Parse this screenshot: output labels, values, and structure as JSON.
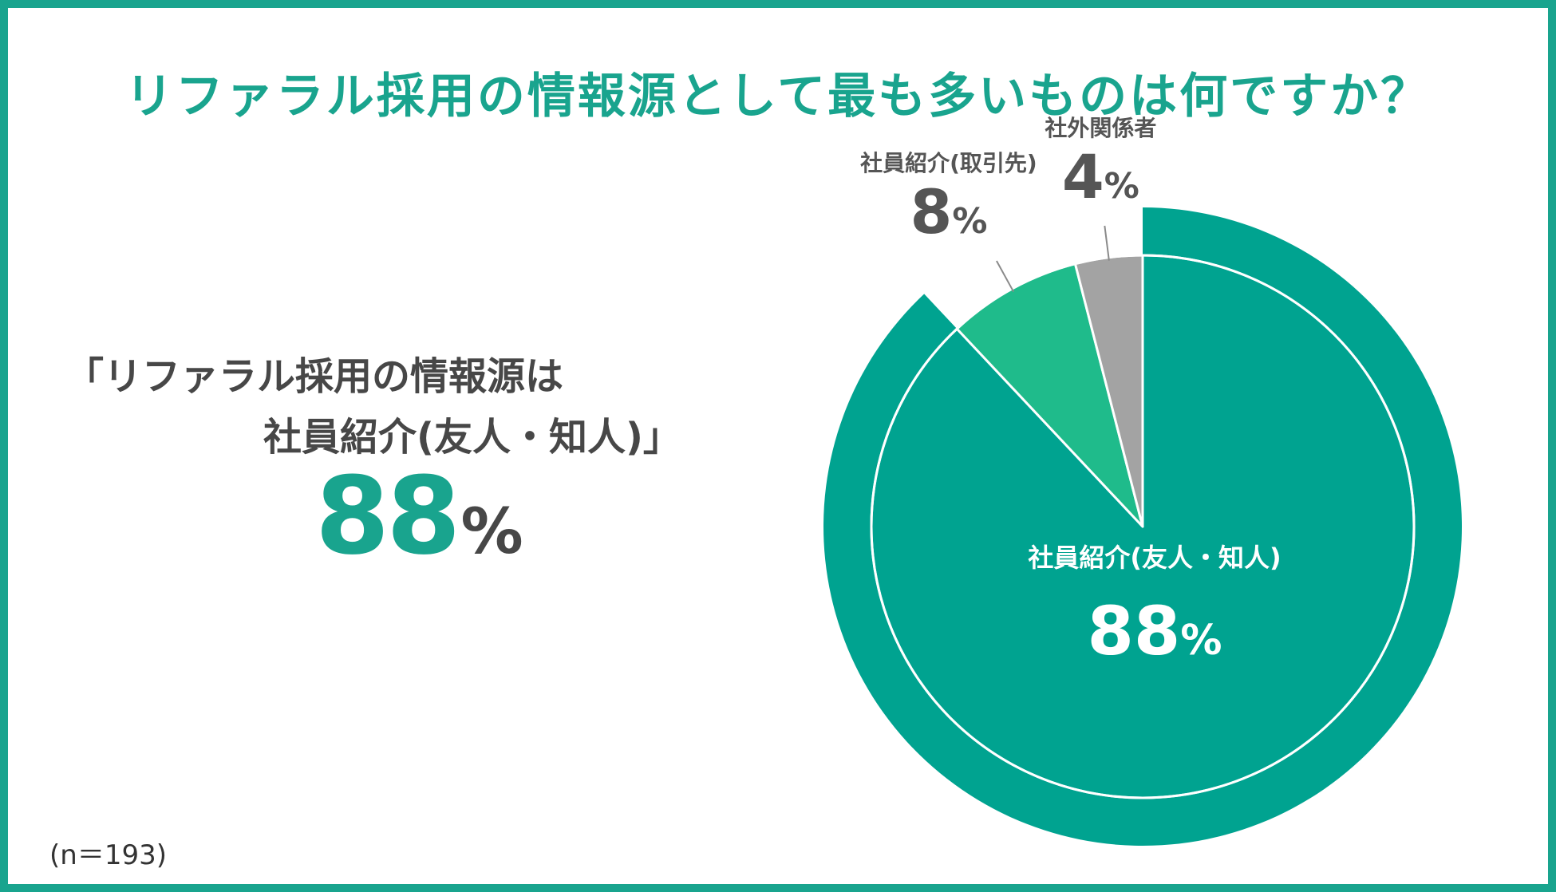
{
  "title": "リファラル採用の情報源として最も多いものは何ですか？",
  "highlight": {
    "line1": "「リファラル採用の情報源は",
    "line2": "社員紹介(友人・知人)」",
    "value": "88",
    "unit": "%"
  },
  "sample_size": "(n＝193)",
  "colors": {
    "primary": "#19a48e",
    "slice_main": "#00a390",
    "slice_partner": "#1fbb8b",
    "slice_external": "#a3a3a3",
    "text_dark": "#474747"
  },
  "chart_data": {
    "type": "pie",
    "start": "top",
    "direction": "clockwise",
    "slices": [
      {
        "label": "社員紹介(友人・知人)",
        "value": 88,
        "value_text": "88",
        "unit": "%",
        "color": "#00a390",
        "label_position": "inside"
      },
      {
        "label": "社員紹介(取引先)",
        "value": 8,
        "value_text": "8",
        "unit": "%",
        "color": "#1fbb8b",
        "label_position": "outside"
      },
      {
        "label": "社外関係者",
        "value": 4,
        "value_text": "4",
        "unit": "%",
        "color": "#a3a3a3",
        "label_position": "outside"
      }
    ],
    "highlight_ring": {
      "slice": "社員紹介(友人・知人)",
      "color": "#00a390"
    }
  }
}
